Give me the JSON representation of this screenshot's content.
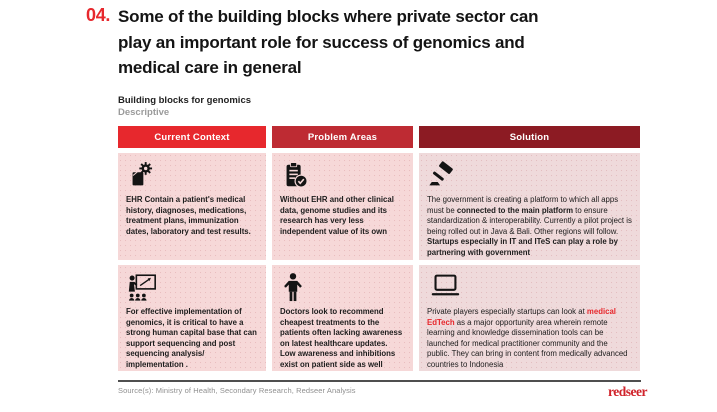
{
  "page": {
    "number": "04.",
    "title_lines": [
      "Some of the building blocks where private sector can",
      "play an important role for success of genomics and",
      "medical care in general"
    ]
  },
  "subtitle": {
    "heading": "Building blocks for genomics",
    "tag": "Descriptive"
  },
  "colors": {
    "accent_red": "#E7282D",
    "header_current_context": "#E7282D",
    "header_problem_areas": "#BE2B33",
    "header_solution": "#8C1B23",
    "cell_pink": "#F6D8D8",
    "cell_pink_solution": "#EFDADB",
    "edtech_highlight": "#E7282D"
  },
  "table": {
    "headers": [
      {
        "label": "Current Context"
      },
      {
        "label": "Problem Areas"
      },
      {
        "label": "Solution"
      }
    ],
    "rows": [
      {
        "cells": [
          {
            "icon": "file-gear-icon",
            "segments": [
              {
                "text": "EHR Contain a patient's medical history, diagnoses, medications, treatment plans, immunization dates, laboratory and test results.",
                "bold": true
              }
            ]
          },
          {
            "icon": "clipboard-check-icon",
            "segments": [
              {
                "text": "Without EHR and other clinical data, genome studies and its research has very less independent value of its own",
                "bold": true
              }
            ]
          },
          {
            "icon": "gavel-icon",
            "segments": [
              {
                "text": "The government is creating a platform to which all apps must be "
              },
              {
                "text": "connected to the main platform",
                "bold": true
              },
              {
                "text": " to ensure standardization & interoperability. Currently a pilot project is being rolled out in Java & Bali. Other regions will follow. "
              },
              {
                "text": "Startups especially in IT and ITeS can play a role by partnering with government",
                "bold": true
              }
            ]
          }
        ]
      },
      {
        "cells": [
          {
            "icon": "training-icon",
            "segments": [
              {
                "text": "For effective implementation of genomics, it is critical to have a strong human capital base that can support sequencing and post sequencing analysis/ implementation .",
                "bold": true
              }
            ]
          },
          {
            "icon": "person-icon",
            "segments": [
              {
                "text": "Doctors look to recommend cheapest treatments to the patients often lacking awareness on latest healthcare updates. Low awareness and inhibitions exist on patient side as well",
                "bold": true
              }
            ]
          },
          {
            "icon": "laptop-icon",
            "segments": [
              {
                "text": "Private players especially startups can look at "
              },
              {
                "text": "medical EdTech",
                "bold": true,
                "color": "#E7282D"
              },
              {
                "text": " as a major opportunity area wherein remote learning and knowledge dissemination tools can be launched for medical practitioner community and the public. They can bring in content from medically advanced countries to Indonesia"
              }
            ]
          }
        ]
      }
    ]
  },
  "footer": {
    "source": "Source(s): Ministry of Health, Secondary Research, Redseer Analysis",
    "logo": "redseer"
  }
}
